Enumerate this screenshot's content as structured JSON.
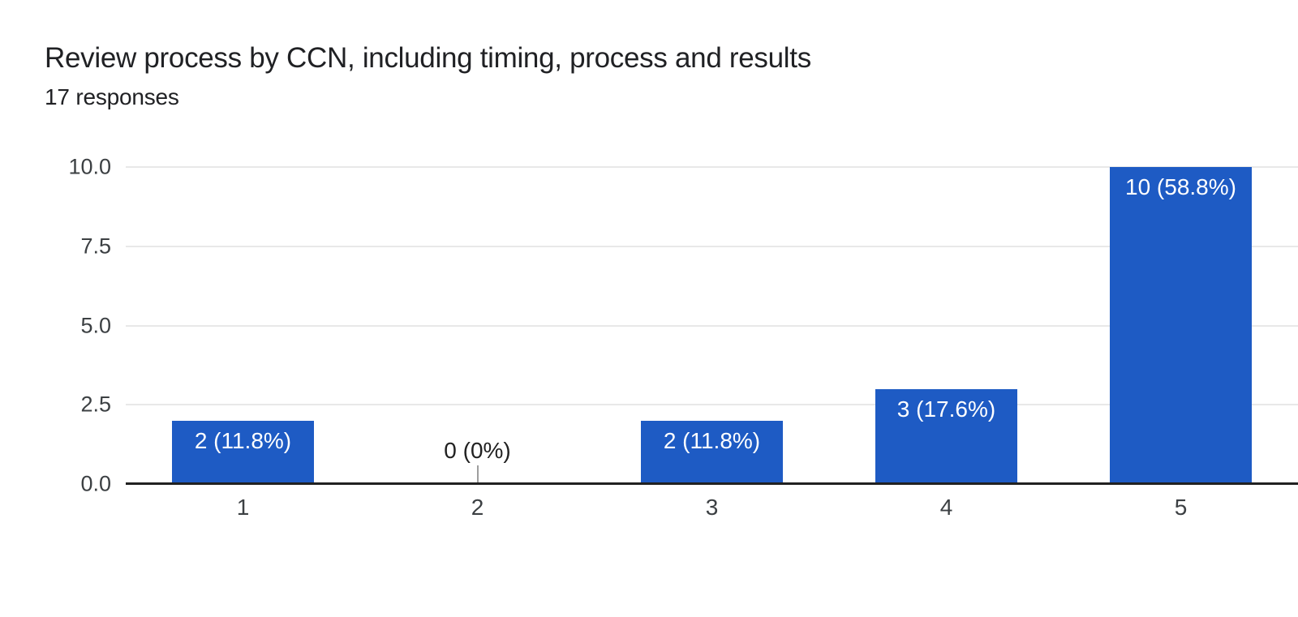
{
  "header": {
    "title": "Review process by CCN, including timing, process and results",
    "responses": "17 responses"
  },
  "chart_data": {
    "type": "bar",
    "title": "Review process by CCN, including timing, process and results",
    "subtitle": "17 responses",
    "total_responses": 17,
    "categories": [
      "1",
      "2",
      "3",
      "4",
      "5"
    ],
    "values": [
      2,
      0,
      2,
      3,
      10
    ],
    "bar_labels": [
      "2 (11.8%)",
      "0 (0%)",
      "2 (11.8%)",
      "3 (17.6%)",
      "10 (58.8%)"
    ],
    "xlabel": "",
    "ylabel": "",
    "ylim": [
      0,
      10
    ],
    "yticks": [
      0.0,
      2.5,
      5.0,
      7.5,
      10.0
    ],
    "ytick_labels": [
      "0.0",
      "2.5",
      "5.0",
      "7.5",
      "10.0"
    ],
    "grid": true,
    "legend": "none",
    "bar_width_fraction": 0.605
  },
  "colors": {
    "bar": "#1e5bc4",
    "bar_label": "#ffffff",
    "gridline": "#e8e8e8",
    "baseline": "#212121",
    "axis_label": "#3c4043",
    "title": "#202124",
    "zero_label": "#212121",
    "zero_callout": "#9e9e9e",
    "background": "#ffffff"
  }
}
